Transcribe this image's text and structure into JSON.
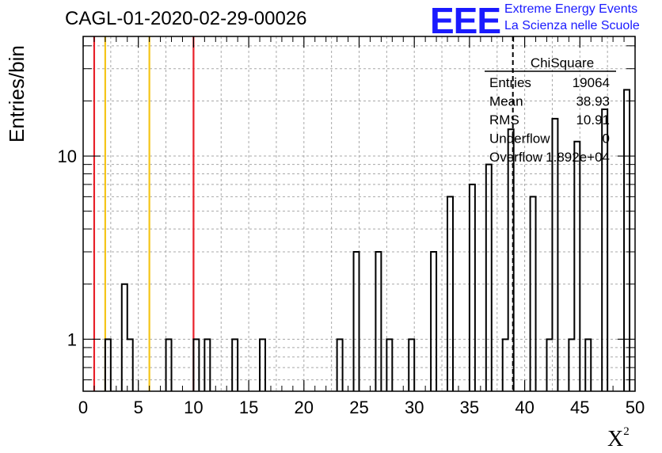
{
  "title": "CAGL-01-2020-02-29-00026",
  "logo": {
    "mark": "EEE",
    "line1": "Extreme Energy Events",
    "line2": "La Scienza nelle Scuole",
    "color": "#1a1aff"
  },
  "stats": {
    "title": "ChiSquare",
    "rows": [
      {
        "label": "Entries",
        "value": "19064"
      },
      {
        "label": "Mean",
        "value": "38.93"
      },
      {
        "label": "RMS",
        "value": "10.91"
      },
      {
        "label": "Underflow",
        "value": "0"
      },
      {
        "label": "Overflow",
        "value": "1.892e+04"
      }
    ]
  },
  "chart_data": {
    "type": "bar",
    "title": "CAGL-01-2020-02-29-00026",
    "xlabel": "χ²",
    "ylabel": "Entries/bin",
    "xlim": [
      0,
      50
    ],
    "ylim": [
      0.52,
      45
    ],
    "yscale": "log",
    "bin_width": 0.5,
    "grid": true,
    "x_ticks": [
      "0",
      "5",
      "10",
      "15",
      "20",
      "25",
      "30",
      "35",
      "40",
      "45",
      "50"
    ],
    "y_ticks": [
      "1",
      "10"
    ],
    "bins": [
      {
        "x": 2.0,
        "value": 1
      },
      {
        "x": 3.5,
        "value": 2
      },
      {
        "x": 4.0,
        "value": 1
      },
      {
        "x": 7.5,
        "value": 1
      },
      {
        "x": 10.0,
        "value": 1
      },
      {
        "x": 11.0,
        "value": 1
      },
      {
        "x": 13.5,
        "value": 1
      },
      {
        "x": 16.0,
        "value": 1
      },
      {
        "x": 23.0,
        "value": 1
      },
      {
        "x": 24.5,
        "value": 3
      },
      {
        "x": 26.5,
        "value": 3
      },
      {
        "x": 27.5,
        "value": 1
      },
      {
        "x": 29.5,
        "value": 1
      },
      {
        "x": 31.5,
        "value": 3
      },
      {
        "x": 33.0,
        "value": 6
      },
      {
        "x": 35.0,
        "value": 7
      },
      {
        "x": 36.5,
        "value": 9
      },
      {
        "x": 38.0,
        "value": 1
      },
      {
        "x": 38.5,
        "value": 14
      },
      {
        "x": 40.5,
        "value": 6
      },
      {
        "x": 42.0,
        "value": 1
      },
      {
        "x": 42.5,
        "value": 16
      },
      {
        "x": 44.0,
        "value": 1
      },
      {
        "x": 44.5,
        "value": 12
      },
      {
        "x": 45.5,
        "value": 1
      },
      {
        "x": 47.0,
        "value": 18
      },
      {
        "x": 49.0,
        "value": 23
      }
    ],
    "vertical_lines": [
      {
        "x": 1,
        "color": "#e8202a"
      },
      {
        "x": 2,
        "color": "#f5c518"
      },
      {
        "x": 6,
        "color": "#f5c518"
      },
      {
        "x": 10,
        "color": "#e8202a"
      },
      {
        "x": 38.93,
        "color": "#000000",
        "dashed": true
      }
    ]
  }
}
